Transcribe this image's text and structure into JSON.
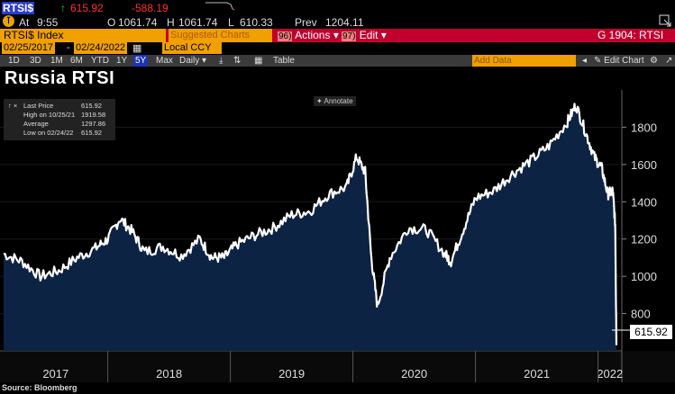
{
  "quote": {
    "ticker": "RTSI$",
    "up_arrow": "↑",
    "last": "615.92",
    "change": "-588.19",
    "at_label": "At",
    "time": "9:55",
    "open_label": "O",
    "open": "1061.74",
    "high_label": "H",
    "high": "1061.74",
    "low_label": "L",
    "low": "610.33",
    "prev_label": "Prev",
    "prev": "1204.11"
  },
  "command_bar": {
    "security": "RTSI$ Index",
    "suggested": "Suggested Charts",
    "actions_num": "96)",
    "actions": "Actions",
    "edit_num": "97)",
    "edit": "Edit",
    "page_code": "G 1904: RTSI"
  },
  "dates": {
    "start": "02/25/2017",
    "end": "02/24/2022",
    "currency": "Local CCY"
  },
  "toolbar": {
    "ranges": [
      "1D",
      "3D",
      "1M",
      "6M",
      "YTD",
      "1Y",
      "5Y",
      "Max"
    ],
    "selected_range": "5Y",
    "frequency": "Daily",
    "table": "Table",
    "add_data": "Add Data",
    "edit_chart": "Edit Chart"
  },
  "title": "Russia RTSI",
  "annotate": "Annotate",
  "legend": [
    {
      "label": "Last Price",
      "value": "615.92"
    },
    {
      "label": "High on 10/25/21",
      "value": "1919.58"
    },
    {
      "label": "Average",
      "value": "1297.86"
    },
    {
      "label": "Low on 02/24/22",
      "value": "615.92"
    }
  ],
  "source": "Source: Bloomberg",
  "colors": {
    "fill": "#0d2344",
    "line": "#ffffff",
    "bg": "#000000",
    "accent": "#f0a000",
    "cmdbar": "#c2002e"
  },
  "chart_data": {
    "type": "area",
    "title": "Russia RTSI",
    "ylim": [
      600,
      2000
    ],
    "yticks": [
      "800",
      "1000",
      "1200",
      "1400",
      "1600",
      "1800"
    ],
    "xticks": [
      "2017",
      "2018",
      "2019",
      "2020",
      "2021",
      "2022"
    ],
    "last_value_tag": "615.92",
    "x": [
      2017.15,
      2017.3,
      2017.45,
      2017.6,
      2017.75,
      2017.9,
      2018.0,
      2018.1,
      2018.2,
      2018.3,
      2018.45,
      2018.6,
      2018.75,
      2018.85,
      2018.95,
      2019.05,
      2019.2,
      2019.35,
      2019.5,
      2019.65,
      2019.8,
      2019.95,
      2020.03,
      2020.1,
      2020.15,
      2020.2,
      2020.3,
      2020.45,
      2020.6,
      2020.75,
      2020.8,
      2020.9,
      2021.0,
      2021.15,
      2021.3,
      2021.45,
      2021.6,
      2021.75,
      2021.82,
      2021.9,
      2021.97,
      2022.03,
      2022.08,
      2022.12,
      2022.14,
      2022.15
    ],
    "values": [
      1120,
      1080,
      1000,
      1030,
      1100,
      1150,
      1200,
      1310,
      1240,
      1130,
      1160,
      1110,
      1200,
      1100,
      1100,
      1170,
      1220,
      1260,
      1330,
      1350,
      1440,
      1480,
      1640,
      1560,
      1100,
      840,
      1100,
      1260,
      1250,
      1120,
      1080,
      1250,
      1420,
      1460,
      1550,
      1620,
      1700,
      1830,
      1920,
      1770,
      1640,
      1580,
      1440,
      1460,
      1280,
      630
    ]
  }
}
